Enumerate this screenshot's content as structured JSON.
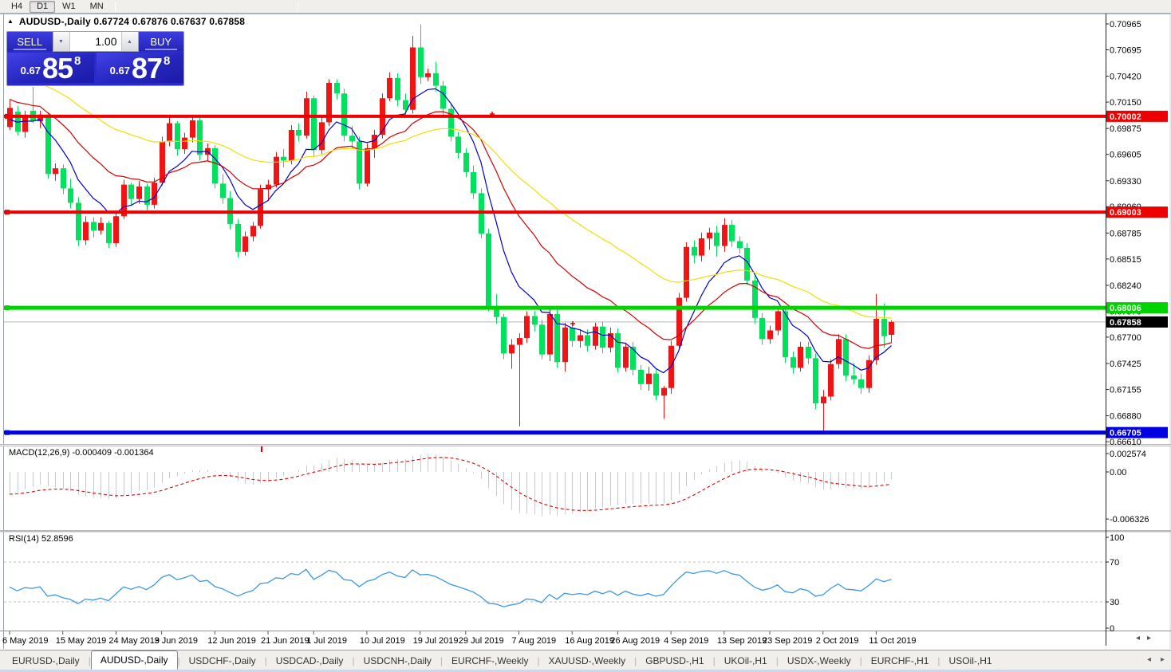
{
  "toolbar": {
    "timeframes": [
      {
        "label": "H4",
        "active": false
      },
      {
        "label": "D1",
        "active": true
      },
      {
        "label": "W1",
        "active": false
      },
      {
        "label": "MN",
        "active": false
      }
    ]
  },
  "chart": {
    "title": "AUDUSD-,Daily  0.67724 0.67876 0.67637 0.67858",
    "symbol": "AUDUSD-,Daily",
    "ohlc_text": "0.67724 0.67876 0.67637 0.67858",
    "bull_color": "#f01414",
    "bear_color": "#00e25e",
    "price_axis_ticks": [
      "0.70965",
      "0.70695",
      "0.70420",
      "0.70150",
      "0.69875",
      "0.69605",
      "0.69330",
      "0.69060",
      "0.68785",
      "0.68515",
      "0.68240",
      "0.67970",
      "0.67700",
      "0.67425",
      "0.67155",
      "0.66880",
      "0.66610"
    ],
    "hlines": [
      {
        "price": 0.70002,
        "label": "0.70002",
        "color": "#ee0000",
        "thickness": 4
      },
      {
        "price": 0.69003,
        "label": "0.69003",
        "color": "#ee0000",
        "thickness": 4
      },
      {
        "price": 0.68006,
        "label": "0.68006",
        "color": "#00d400",
        "thickness": 5
      },
      {
        "price": 0.66705,
        "label": "0.66705",
        "color": "#0000e0",
        "thickness": 5
      }
    ],
    "current_price": {
      "value": 0.67858,
      "label": "0.67858",
      "line_color": "#b8b8b8",
      "box_color": "#000000"
    },
    "moving_averages": [
      {
        "period": 8,
        "seed": 0.6997,
        "color": "#0000c8"
      },
      {
        "period": 20,
        "seed": 0.7018,
        "color": "#d40000"
      },
      {
        "period": 45,
        "seed": 0.7043,
        "color": "#efe000"
      }
    ],
    "date_ticks": [
      {
        "i": 0,
        "label": "6 May 2019"
      },
      {
        "i": 7,
        "label": "15 May 2019"
      },
      {
        "i": 14,
        "label": "24 May 2019"
      },
      {
        "i": 20,
        "label": "3 Jun 2019"
      },
      {
        "i": 27,
        "label": "12 Jun 2019"
      },
      {
        "i": 34,
        "label": "21 Jun 2019"
      },
      {
        "i": 40,
        "label": "1 Jul 2019"
      },
      {
        "i": 47,
        "label": "10 Jul 2019"
      },
      {
        "i": 54,
        "label": "19 Jul 2019"
      },
      {
        "i": 60,
        "label": "29 Jul 2019"
      },
      {
        "i": 67,
        "label": "7 Aug 2019"
      },
      {
        "i": 74,
        "label": "16 Aug 2019"
      },
      {
        "i": 80,
        "label": "26 Aug 2019"
      },
      {
        "i": 87,
        "label": "4 Sep 2019"
      },
      {
        "i": 94,
        "label": "13 Sep 2019"
      },
      {
        "i": 100,
        "label": "23 Sep 2019"
      },
      {
        "i": 107,
        "label": "2 Oct 2019"
      },
      {
        "i": 114,
        "label": "11 Oct 2019"
      }
    ],
    "candles": [
      [
        0.6989,
        0.7018,
        0.6986,
        0.7009
      ],
      [
        0.7005,
        0.7011,
        0.698,
        0.6984
      ],
      [
        0.6984,
        0.7006,
        0.6978,
        0.6999
      ],
      [
        0.7006,
        0.7031,
        0.6993,
        0.6995
      ],
      [
        0.6995,
        0.7006,
        0.6988,
        0.7002
      ],
      [
        0.7002,
        0.7004,
        0.6935,
        0.694
      ],
      [
        0.694,
        0.6951,
        0.6933,
        0.6946
      ],
      [
        0.6946,
        0.695,
        0.6919,
        0.6925
      ],
      [
        0.6925,
        0.6935,
        0.6904,
        0.691
      ],
      [
        0.691,
        0.6916,
        0.6865,
        0.6871
      ],
      [
        0.6871,
        0.6896,
        0.6866,
        0.689
      ],
      [
        0.689,
        0.6895,
        0.6874,
        0.6881
      ],
      [
        0.6881,
        0.6895,
        0.6877,
        0.6889
      ],
      [
        0.6889,
        0.6891,
        0.6863,
        0.6868
      ],
      [
        0.6868,
        0.6901,
        0.6864,
        0.6896
      ],
      [
        0.6896,
        0.6934,
        0.6893,
        0.6929
      ],
      [
        0.6929,
        0.6931,
        0.6907,
        0.6914
      ],
      [
        0.6914,
        0.6933,
        0.6909,
        0.6927
      ],
      [
        0.6927,
        0.693,
        0.6902,
        0.6908
      ],
      [
        0.6908,
        0.6936,
        0.6904,
        0.6931
      ],
      [
        0.6931,
        0.6979,
        0.6928,
        0.6974
      ],
      [
        0.6974,
        0.6999,
        0.6969,
        0.6993
      ],
      [
        0.6993,
        0.6995,
        0.6959,
        0.6966
      ],
      [
        0.6966,
        0.6983,
        0.6961,
        0.6978
      ],
      [
        0.6978,
        0.7001,
        0.6973,
        0.6996
      ],
      [
        0.6996,
        0.7002,
        0.6954,
        0.696
      ],
      [
        0.696,
        0.6972,
        0.6954,
        0.6967
      ],
      [
        0.6967,
        0.697,
        0.6925,
        0.693
      ],
      [
        0.693,
        0.694,
        0.6909,
        0.6915
      ],
      [
        0.6915,
        0.6922,
        0.6882,
        0.6888
      ],
      [
        0.6888,
        0.6893,
        0.6853,
        0.6859
      ],
      [
        0.6859,
        0.688,
        0.6855,
        0.6875
      ],
      [
        0.6875,
        0.689,
        0.687,
        0.6886
      ],
      [
        0.6886,
        0.6929,
        0.6883,
        0.6924
      ],
      [
        0.6924,
        0.6934,
        0.6912,
        0.6929
      ],
      [
        0.6929,
        0.6963,
        0.6926,
        0.6958
      ],
      [
        0.6958,
        0.6966,
        0.6947,
        0.6954
      ],
      [
        0.6954,
        0.6991,
        0.695,
        0.6986
      ],
      [
        0.6986,
        0.6993,
        0.6974,
        0.698
      ],
      [
        0.698,
        0.7026,
        0.6977,
        0.7019
      ],
      [
        0.7019,
        0.7022,
        0.6959,
        0.6965
      ],
      [
        0.6965,
        0.6999,
        0.6961,
        0.6994
      ],
      [
        0.6994,
        0.7039,
        0.699,
        0.7035
      ],
      [
        0.7035,
        0.7039,
        0.7018,
        0.7024
      ],
      [
        0.7024,
        0.7029,
        0.6974,
        0.698
      ],
      [
        0.698,
        0.699,
        0.6967,
        0.6974
      ],
      [
        0.6974,
        0.6979,
        0.6924,
        0.693
      ],
      [
        0.693,
        0.6972,
        0.6927,
        0.6967
      ],
      [
        0.6967,
        0.6986,
        0.6957,
        0.6981
      ],
      [
        0.6981,
        0.7024,
        0.6977,
        0.7019
      ],
      [
        0.7019,
        0.7046,
        0.7016,
        0.704
      ],
      [
        0.704,
        0.7045,
        0.7011,
        0.7017
      ],
      [
        0.7017,
        0.7024,
        0.6999,
        0.7007
      ],
      [
        0.7007,
        0.7084,
        0.7003,
        0.7072
      ],
      [
        0.7072,
        0.7096,
        0.7034,
        0.7041
      ],
      [
        0.7041,
        0.705,
        0.7037,
        0.7045
      ],
      [
        0.7045,
        0.7057,
        0.7026,
        0.7032
      ],
      [
        0.7032,
        0.7037,
        0.7002,
        0.7008
      ],
      [
        0.7008,
        0.7013,
        0.6974,
        0.6979
      ],
      [
        0.6979,
        0.6984,
        0.6956,
        0.6962
      ],
      [
        0.6962,
        0.6967,
        0.6937,
        0.6942
      ],
      [
        0.6942,
        0.6949,
        0.6914,
        0.692
      ],
      [
        0.692,
        0.6925,
        0.6873,
        0.6878
      ],
      [
        0.6878,
        0.6883,
        0.6797,
        0.6802
      ],
      [
        0.6802,
        0.6815,
        0.6784,
        0.6791
      ],
      [
        0.6791,
        0.6794,
        0.6747,
        0.6753
      ],
      [
        0.6753,
        0.6768,
        0.6737,
        0.6762
      ],
      [
        0.6762,
        0.6774,
        0.6677,
        0.6769
      ],
      [
        0.6769,
        0.6797,
        0.6764,
        0.6792
      ],
      [
        0.6792,
        0.6797,
        0.6776,
        0.6783
      ],
      [
        0.6783,
        0.6788,
        0.6747,
        0.6752
      ],
      [
        0.6752,
        0.6799,
        0.6745,
        0.6794
      ],
      [
        0.6794,
        0.6799,
        0.6738,
        0.6744
      ],
      [
        0.6744,
        0.6785,
        0.6734,
        0.678
      ],
      [
        0.678,
        0.6785,
        0.676,
        0.6766
      ],
      [
        0.6766,
        0.6778,
        0.6759,
        0.6772
      ],
      [
        0.6772,
        0.6778,
        0.6755,
        0.6761
      ],
      [
        0.6761,
        0.6785,
        0.6757,
        0.6781
      ],
      [
        0.6781,
        0.6786,
        0.6753,
        0.6759
      ],
      [
        0.6759,
        0.678,
        0.6754,
        0.6774
      ],
      [
        0.6774,
        0.6779,
        0.6733,
        0.6738
      ],
      [
        0.6738,
        0.6764,
        0.6734,
        0.676
      ],
      [
        0.676,
        0.6765,
        0.673,
        0.6736
      ],
      [
        0.6736,
        0.6741,
        0.6715,
        0.6721
      ],
      [
        0.6721,
        0.6739,
        0.6714,
        0.6732
      ],
      [
        0.6732,
        0.6737,
        0.6704,
        0.6709
      ],
      [
        0.6709,
        0.6719,
        0.6685,
        0.6717
      ],
      [
        0.6717,
        0.6766,
        0.6711,
        0.6761
      ],
      [
        0.6761,
        0.6816,
        0.6757,
        0.6811
      ],
      [
        0.6811,
        0.6869,
        0.6807,
        0.6864
      ],
      [
        0.6864,
        0.6871,
        0.6847,
        0.6855
      ],
      [
        0.6855,
        0.6879,
        0.6849,
        0.6873
      ],
      [
        0.6873,
        0.6884,
        0.6861,
        0.6879
      ],
      [
        0.6879,
        0.6886,
        0.6854,
        0.6865
      ],
      [
        0.6865,
        0.6894,
        0.6859,
        0.6887
      ],
      [
        0.6887,
        0.6892,
        0.6864,
        0.687
      ],
      [
        0.687,
        0.6875,
        0.6857,
        0.6863
      ],
      [
        0.6863,
        0.6868,
        0.6824,
        0.6829
      ],
      [
        0.6829,
        0.6834,
        0.6784,
        0.679
      ],
      [
        0.679,
        0.6795,
        0.6762,
        0.6768
      ],
      [
        0.6768,
        0.6782,
        0.6763,
        0.6777
      ],
      [
        0.6777,
        0.6802,
        0.6772,
        0.6797
      ],
      [
        0.6797,
        0.68,
        0.6743,
        0.6749
      ],
      [
        0.6749,
        0.6755,
        0.6732,
        0.6738
      ],
      [
        0.6738,
        0.6765,
        0.6734,
        0.676
      ],
      [
        0.676,
        0.6765,
        0.6742,
        0.6748
      ],
      [
        0.6748,
        0.6753,
        0.6695,
        0.6701
      ],
      [
        0.6701,
        0.6715,
        0.6671,
        0.6708
      ],
      [
        0.6708,
        0.6747,
        0.6704,
        0.6742
      ],
      [
        0.6742,
        0.6773,
        0.6737,
        0.6768
      ],
      [
        0.6768,
        0.6773,
        0.6724,
        0.673
      ],
      [
        0.673,
        0.6743,
        0.6721,
        0.6726
      ],
      [
        0.6726,
        0.6732,
        0.6711,
        0.6717
      ],
      [
        0.6717,
        0.6751,
        0.6712,
        0.6746
      ],
      [
        0.6746,
        0.6815,
        0.6741,
        0.6789
      ],
      [
        0.6789,
        0.6805,
        0.6759,
        0.6771
      ],
      [
        0.67724,
        0.67876,
        0.67637,
        0.67858
      ]
    ]
  },
  "trade_panel": {
    "sell_label": "SELL",
    "buy_label": "BUY",
    "volume": "1.00",
    "sell_price": {
      "prefix": "0.67",
      "big": "85",
      "pip": "8"
    },
    "buy_price": {
      "prefix": "0.67",
      "big": "87",
      "pip": "8"
    }
  },
  "macd": {
    "label": "MACD(12,26,9) -0.000409 -0.001364",
    "fast": 12,
    "slow": 26,
    "signal": 9,
    "axis_ticks": [
      "0.002574",
      "0.00",
      "-0.006326"
    ],
    "histogram_color": "#c9c9c9",
    "signal_color": "#e00000"
  },
  "rsi": {
    "label": "RSI(14) 52.8596",
    "period": 14,
    "levels": [
      70,
      30
    ],
    "axis_ticks": [
      "100",
      "70",
      "30",
      "0"
    ],
    "color": "#3b97e3"
  },
  "date_row": {
    "left_arrow": "◂",
    "right_arrow": "▸"
  },
  "tabs": {
    "items": [
      {
        "label": "EURUSD-,Daily",
        "active": false
      },
      {
        "label": "AUDUSD-,Daily",
        "active": true
      },
      {
        "label": "USDCHF-,Daily",
        "active": false
      },
      {
        "label": "USDCAD-,Daily",
        "active": false
      },
      {
        "label": "USDCNH-,Daily",
        "active": false
      },
      {
        "label": "EURCHF-,Weekly",
        "active": false
      },
      {
        "label": "XAUUSD-,Weekly",
        "active": false
      },
      {
        "label": "GBPUSD-,H1",
        "active": false
      },
      {
        "label": "UKOil-,H1",
        "active": false
      },
      {
        "label": "USDX-,Weekly",
        "active": false
      },
      {
        "label": "EURCHF-,H1",
        "active": false
      },
      {
        "label": "USOil-,H1",
        "active": false
      }
    ],
    "left_arrow": "◂",
    "right_arrow": "▸"
  }
}
